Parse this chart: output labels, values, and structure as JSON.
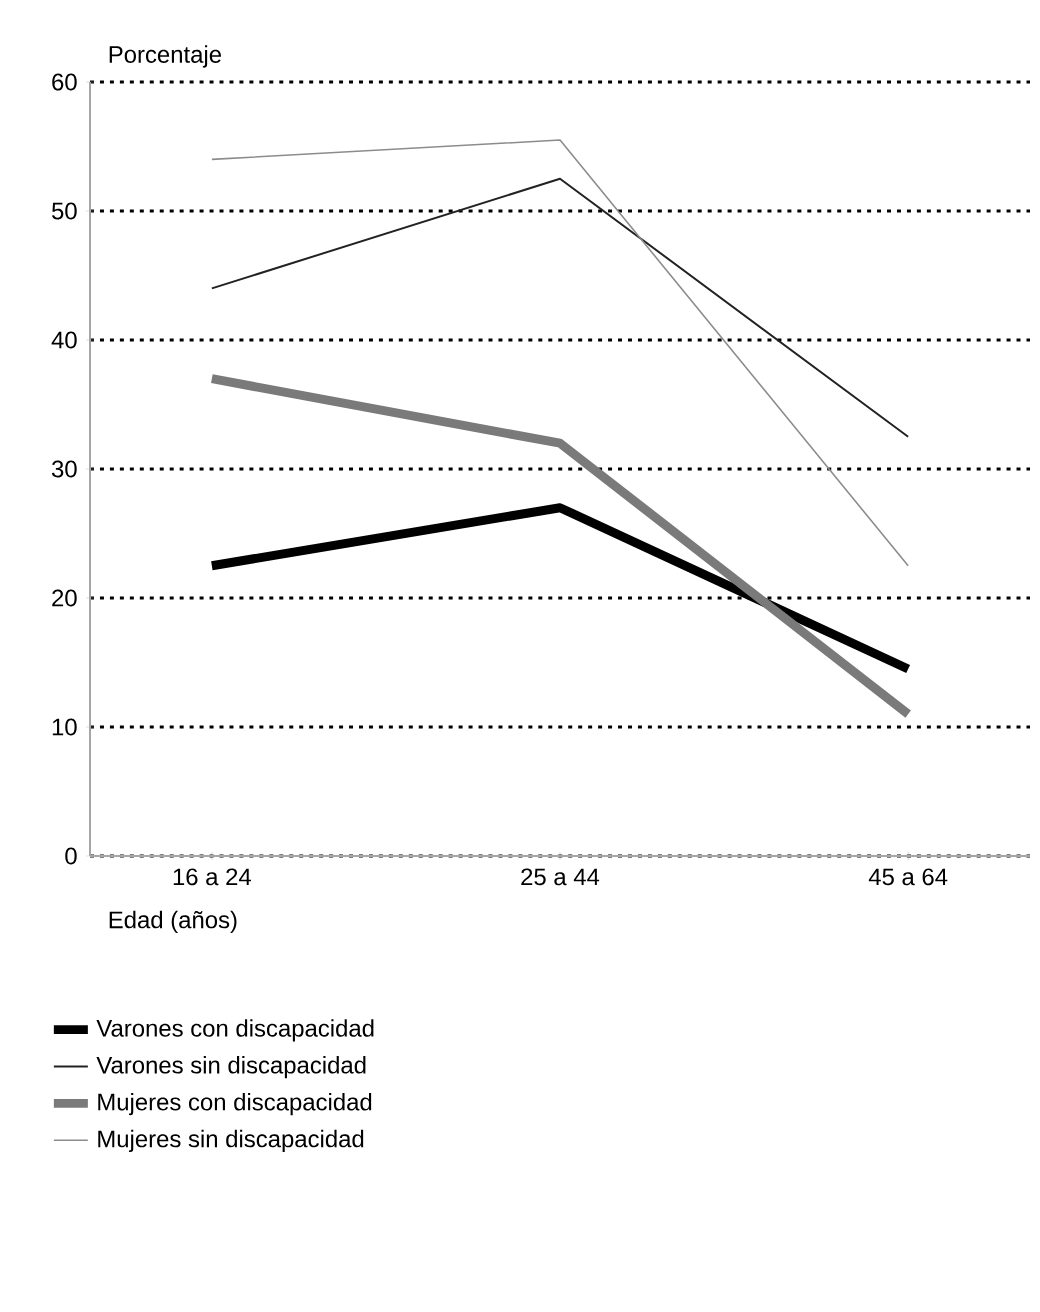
{
  "chart_data": {
    "type": "line",
    "xlabel": "Edad (años)",
    "ylabel": "Porcentaje",
    "categories": [
      "16 a 24",
      "25 a 44",
      "45 a 64"
    ],
    "series": [
      {
        "name": "Varones con discapacidad",
        "color": "#000000",
        "values": [
          22.5,
          27,
          14.5
        ]
      },
      {
        "name": "Varones sin discapacidad",
        "color": "#222222",
        "values": [
          44,
          52.5,
          32.5
        ]
      },
      {
        "name": "Mujeres con discapacidad",
        "color": "#7a7a7a",
        "values": [
          37,
          32,
          11
        ]
      },
      {
        "name": "Mujeres sin discapacidad",
        "color": "#8c8c8c",
        "values": [
          54,
          55.5,
          22.5
        ]
      }
    ],
    "ylim": [
      0,
      60
    ],
    "yticks": [
      0,
      10,
      20,
      30,
      40,
      50,
      60
    ],
    "grid": "y",
    "legend": "bottom",
    "line_style": "solid",
    "marker": "none"
  }
}
